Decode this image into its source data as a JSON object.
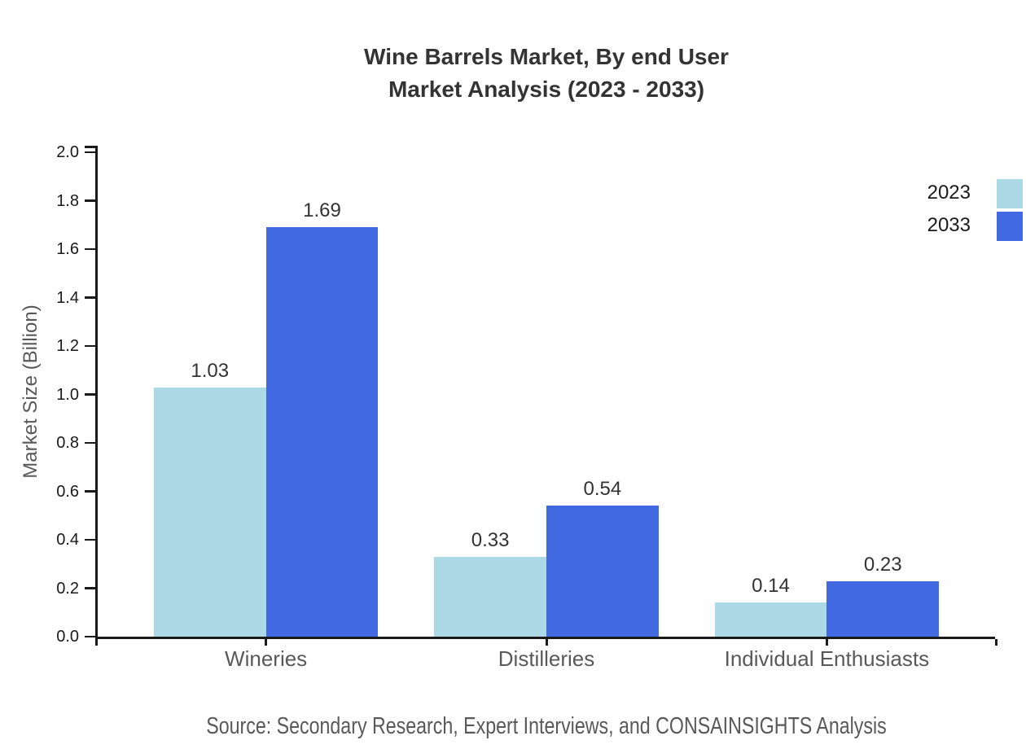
{
  "title": {
    "line1": "Wine Barrels Market, By end User",
    "line2": "Market Analysis (2023 - 2033)"
  },
  "source_note": "Source: Secondary Research, Expert Interviews, and CONSAINSIGHTS Analysis",
  "chart_data": {
    "type": "bar",
    "title": "Wine Barrels Market, By end User Market Analysis (2023 - 2033)",
    "categories": [
      "Wineries",
      "Distilleries",
      "Individual Enthusiasts"
    ],
    "series": [
      {
        "name": "2023",
        "color": "#ADD8E6",
        "values": [
          1.03,
          0.33,
          0.14
        ]
      },
      {
        "name": "2033",
        "color": "#4169E1",
        "values": [
          1.69,
          0.54,
          0.23
        ]
      }
    ],
    "xlabel": "",
    "ylabel": "Market Size (Billion)",
    "ylim": [
      0.0,
      2.0
    ],
    "yticks": [
      "0.0",
      "0.2",
      "0.4",
      "0.6",
      "0.8",
      "1.0",
      "1.2",
      "1.4",
      "1.6",
      "1.8",
      "2.0"
    ],
    "grid": false,
    "legend_position": "upper right",
    "value_labels": true,
    "value_label_format": "2dp",
    "axis_color": "#1a1a1a"
  }
}
